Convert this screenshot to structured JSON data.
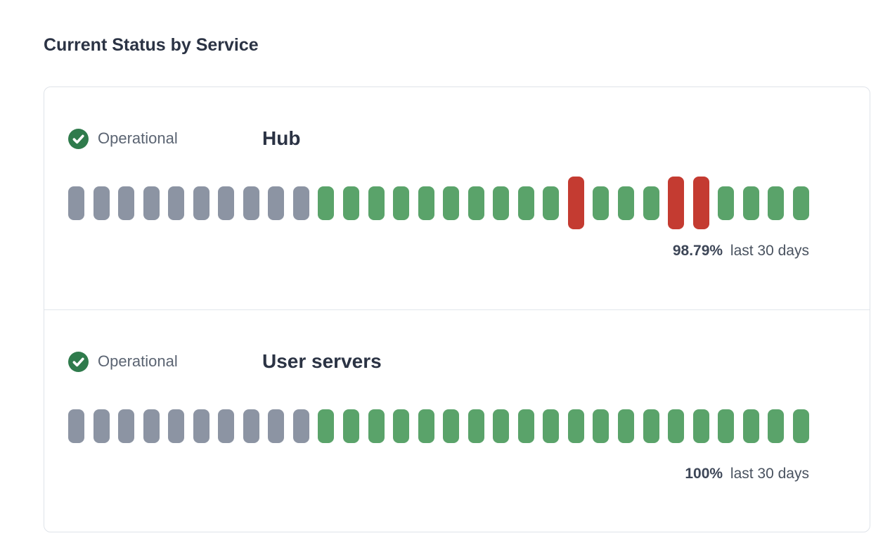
{
  "page": {
    "title": "Current Status by Service"
  },
  "colors": {
    "operational_green": "#5AA36A",
    "no_data_gray": "#8C94A3",
    "outage_red": "#C43B31",
    "badge_circle_green": "#2F7B4C",
    "heading_navy": "#2B3344",
    "card_border": "#DFE3E9"
  },
  "services": [
    {
      "name": "Hub",
      "status_label": "Operational",
      "uptime_value": "98.79%",
      "uptime_caption": "last 30 days",
      "bars": [
        "nodata",
        "nodata",
        "nodata",
        "nodata",
        "nodata",
        "nodata",
        "nodata",
        "nodata",
        "nodata",
        "nodata",
        "operational",
        "operational",
        "operational",
        "operational",
        "operational",
        "operational",
        "operational",
        "operational",
        "operational",
        "operational",
        "outage",
        "operational",
        "operational",
        "operational",
        "outage",
        "outage",
        "operational",
        "operational",
        "operational",
        "operational"
      ]
    },
    {
      "name": "User servers",
      "status_label": "Operational",
      "uptime_value": "100%",
      "uptime_caption": "last 30 days",
      "bars": [
        "nodata",
        "nodata",
        "nodata",
        "nodata",
        "nodata",
        "nodata",
        "nodata",
        "nodata",
        "nodata",
        "nodata",
        "operational",
        "operational",
        "operational",
        "operational",
        "operational",
        "operational",
        "operational",
        "operational",
        "operational",
        "operational",
        "operational",
        "operational",
        "operational",
        "operational",
        "operational",
        "operational",
        "operational",
        "operational",
        "operational",
        "operational"
      ]
    }
  ]
}
